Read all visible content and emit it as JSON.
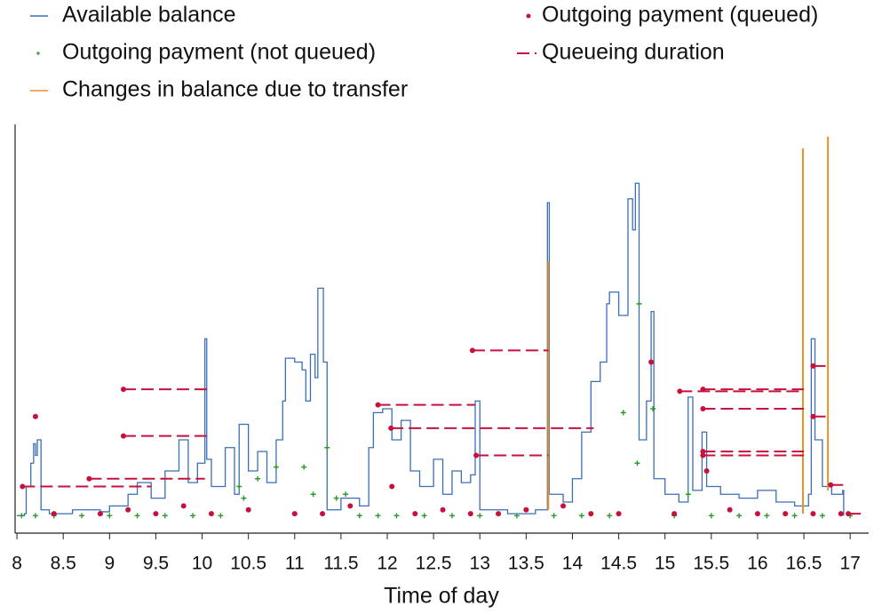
{
  "chart_data": {
    "type": "line",
    "xlabel": "Time of day",
    "xlim": [
      7.98,
      17.2
    ],
    "ylim": [
      -4,
      100
    ],
    "xticks": [
      8,
      8.5,
      9,
      9.5,
      10,
      10.5,
      11,
      11.5,
      12,
      12.5,
      13,
      13.5,
      14,
      14.5,
      15,
      15.5,
      16,
      16.5,
      17
    ],
    "series": [
      {
        "name": "Available balance",
        "type": "line",
        "color": "#3a6fb5",
        "x": [
          8.0,
          8.08,
          8.1,
          8.15,
          8.18,
          8.2,
          8.22,
          8.26,
          8.35,
          8.6,
          8.9,
          9.0,
          9.2,
          9.3,
          9.45,
          9.6,
          9.75,
          9.85,
          9.95,
          10.03,
          10.05,
          10.1,
          10.25,
          10.35,
          10.4,
          10.5,
          10.6,
          10.7,
          10.8,
          10.87,
          10.9,
          11.0,
          11.08,
          11.12,
          11.17,
          11.22,
          11.25,
          11.31,
          11.35,
          11.5,
          11.7,
          11.8,
          11.85,
          11.95,
          12.05,
          12.15,
          12.25,
          12.35,
          12.5,
          12.6,
          12.7,
          12.8,
          12.9,
          12.95,
          13.0,
          13.3,
          13.6,
          13.73,
          13.75,
          13.9,
          14.0,
          14.1,
          14.2,
          14.3,
          14.37,
          14.4,
          14.5,
          14.6,
          14.65,
          14.68,
          14.72,
          14.8,
          14.85,
          14.88,
          15.0,
          15.15,
          15.25,
          15.3,
          15.4,
          15.45,
          15.6,
          15.8,
          16.0,
          16.2,
          16.4,
          16.55,
          16.58,
          16.62,
          16.7,
          16.8,
          16.92,
          16.93
        ],
        "values": [
          0.5,
          1,
          8,
          14,
          19,
          16,
          20,
          2,
          1,
          2,
          1.5,
          3,
          6,
          9,
          5,
          12,
          20,
          9,
          14,
          46,
          15,
          8,
          18,
          6,
          24,
          12,
          17,
          9,
          20,
          30,
          41,
          40,
          38,
          30,
          42,
          36,
          59,
          40,
          2,
          5,
          3,
          18,
          27,
          28,
          20,
          25,
          12,
          8,
          15,
          6,
          12,
          9,
          11,
          30,
          2,
          1,
          2,
          81,
          6,
          4,
          10,
          22,
          35,
          40,
          55,
          58,
          52,
          82,
          74,
          86,
          20,
          30,
          53,
          10,
          6,
          4,
          31,
          7,
          22,
          8,
          6,
          5,
          7,
          4,
          3,
          6,
          46,
          20,
          8,
          6,
          7,
          0.5
        ]
      },
      {
        "name": "Outgoing payment (not queued)",
        "type": "scatter",
        "marker": "plus",
        "color": "#2a9a2a",
        "x": [
          8.05,
          8.2,
          8.4,
          8.7,
          9.0,
          9.3,
          9.6,
          9.9,
          10.2,
          10.45,
          10.4,
          10.6,
          10.8,
          11.1,
          11.2,
          11.35,
          11.45,
          11.55,
          11.7,
          11.9,
          12.1,
          12.4,
          12.7,
          13.0,
          13.4,
          13.8,
          14.1,
          14.4,
          14.55,
          14.7,
          14.72,
          14.87,
          15.1,
          15.25,
          15.5,
          15.8,
          16.1,
          16.4,
          16.7,
          17.0
        ],
        "values": [
          0.5,
          0.5,
          0.5,
          0.5,
          0.5,
          0.5,
          0.5,
          0.5,
          0.5,
          5,
          8,
          10,
          13,
          13,
          6,
          18,
          5,
          6,
          0.5,
          0.5,
          0.5,
          0.5,
          0.5,
          0.5,
          0.5,
          0.5,
          0.5,
          0.5,
          27,
          14,
          55,
          28,
          0.5,
          6,
          0.5,
          0.5,
          0.5,
          0.5,
          0.5,
          0.5
        ]
      },
      {
        "name": "Changes in balance due to transfer",
        "type": "vline",
        "color": "#e8922b",
        "x": [
          13.74,
          16.49,
          16.76
        ],
        "base": [
          2,
          1,
          7
        ],
        "values": [
          66,
          95,
          98
        ]
      },
      {
        "name": "Outgoing payment (queued)",
        "type": "scatter",
        "marker": "dot",
        "color": "#c8103c",
        "x": [
          8.2,
          8.4,
          8.9,
          9.2,
          9.5,
          9.8,
          10.1,
          10.5,
          11.0,
          11.3,
          11.6,
          12.05,
          12.3,
          12.6,
          12.9,
          13.2,
          13.5,
          13.9,
          14.2,
          14.5,
          14.85,
          15.1,
          15.45,
          15.7,
          16.0,
          16.3,
          16.6,
          16.9
        ],
        "values": [
          26,
          1,
          1,
          2,
          1,
          3,
          1,
          2,
          1,
          1,
          3,
          8,
          1,
          2,
          1,
          1,
          2,
          3,
          1,
          1,
          40,
          1,
          12,
          2,
          1,
          1,
          1,
          1
        ]
      },
      {
        "name": "Queueing duration",
        "type": "segment",
        "color": "#c8103c",
        "x": [
          9.15,
          9.15,
          12.92,
          11.9,
          12.04,
          12.96,
          8.06,
          8.78,
          15.16,
          15.41,
          15.41,
          15.41,
          15.41,
          16.6,
          16.6,
          16.79,
          16.98
        ],
        "x_end": [
          10.05,
          10.05,
          13.74,
          12.95,
          14.23,
          13.74,
          9.45,
          10.03,
          16.5,
          16.5,
          16.5,
          16.5,
          16.5,
          16.76,
          16.76,
          16.93,
          17.17
        ],
        "values": [
          33,
          21,
          43,
          29,
          23,
          16,
          8,
          10,
          32.5,
          33,
          28,
          17,
          16,
          39,
          26,
          8.4,
          1
        ]
      }
    ]
  }
}
